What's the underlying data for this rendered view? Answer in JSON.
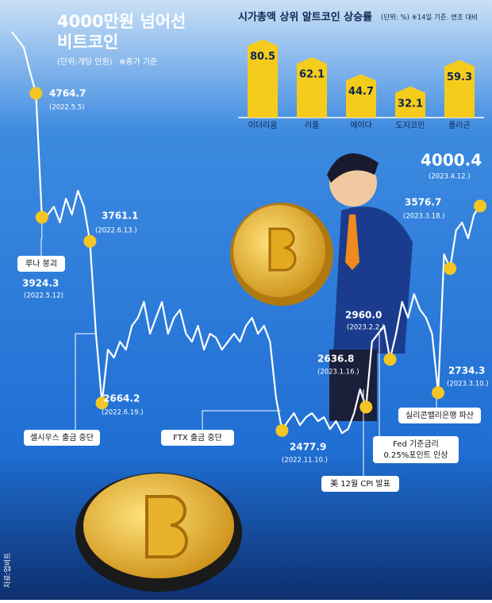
{
  "chart_data": [
    {
      "type": "line",
      "title": [
        "4000만원 넘어선",
        "비트코인"
      ],
      "subtitle": "(단위:개당 만원)",
      "note": "※종가 기준",
      "source": "자료:업비트",
      "color": "#ffffff",
      "marker_color": "#f3c623",
      "ylim": [
        2380,
        5290
      ],
      "categories": [
        null,
        null,
        null,
        null,
        "(2022.5.5)",
        "(2022.5.12)",
        null,
        null,
        null,
        null,
        null,
        null,
        null,
        "(2022.6.13.)",
        null,
        "(2022.6.19.)",
        null,
        null,
        null,
        null,
        null,
        null,
        null,
        null,
        null,
        null,
        null,
        null,
        null,
        null,
        null,
        null,
        null,
        null,
        null,
        null,
        null,
        null,
        null,
        null,
        null,
        null,
        null,
        null,
        null,
        "(2022.11.10.)",
        null,
        null,
        null,
        null,
        null,
        null,
        null,
        null,
        null,
        null,
        null,
        null,
        null,
        "(2023.1.16.)",
        null,
        null,
        null,
        "(2023.2.2.)",
        null,
        null,
        null,
        null,
        null,
        null,
        null,
        "(2023.3.10.)",
        null,
        "(2023.3.18.)",
        null,
        null,
        null,
        null,
        "(2023.4.12.)"
      ],
      "values": [
        5182,
        5128,
        5074,
        4913,
        4764.7,
        3924.3,
        3943,
        3996,
        3889,
        4050,
        3943,
        4104,
        3996,
        3761.1,
        3134,
        2664.2,
        3026,
        2972,
        3080,
        3026,
        3188,
        3242,
        3350,
        3134,
        3242,
        3350,
        3134,
        3242,
        3296,
        3134,
        3080,
        3188,
        3026,
        3134,
        3107,
        3026,
        3080,
        3134,
        3080,
        3188,
        3242,
        3134,
        3188,
        3080,
        2703,
        2477.9,
        2541,
        2595,
        2514,
        2568,
        2595,
        2541,
        2568,
        2487,
        2541,
        2460,
        2487,
        2595,
        2757,
        2636.8,
        3080,
        3134,
        3188,
        2960.0,
        3134,
        3350,
        3242,
        3403,
        3296,
        3242,
        3134,
        2734.3,
        3673,
        3576.7,
        3835,
        3889,
        3781,
        3943,
        4000.4
      ],
      "value_labels": [
        null,
        null,
        null,
        null,
        "4764.7",
        "3924.3",
        null,
        null,
        null,
        null,
        null,
        null,
        null,
        "3761.1",
        null,
        "2664.2",
        null,
        null,
        null,
        null,
        null,
        null,
        null,
        null,
        null,
        null,
        null,
        null,
        null,
        null,
        null,
        null,
        null,
        null,
        null,
        null,
        null,
        null,
        null,
        null,
        null,
        null,
        null,
        null,
        null,
        "2477.9",
        null,
        null,
        null,
        null,
        null,
        null,
        null,
        null,
        null,
        null,
        null,
        null,
        null,
        "2636.8",
        null,
        null,
        null,
        "2960.0",
        null,
        null,
        null,
        null,
        null,
        null,
        null,
        "2734.3",
        null,
        "3576.7",
        null,
        null,
        null,
        null,
        "4000.4"
      ],
      "events": [
        {
          "lines": [
            "루나 붕괴"
          ]
        },
        {
          "lines": [
            "셀시우스 출금 중단"
          ]
        },
        {
          "lines": [
            "FTX 출금 중단"
          ]
        },
        {
          "lines": [
            "美 12월 CPI 발표"
          ]
        },
        {
          "lines": [
            "Fed 기준금리",
            "0.25%포인트 인상"
          ]
        },
        {
          "lines": [
            "실리콘밸리은행 파산"
          ]
        }
      ]
    },
    {
      "type": "bar",
      "title": "시가총액 상위 알트코인 상승률",
      "note": "(단위: %) ※14일 기준. 연초 대비",
      "categories": [
        "이더리움",
        "리플",
        "에이다",
        "도지코인",
        "폴리곤"
      ],
      "values": [
        80.5,
        62.1,
        44.7,
        32.1,
        59.3
      ],
      "color": "#f5cc1c",
      "ylim": [
        0,
        90
      ]
    }
  ]
}
